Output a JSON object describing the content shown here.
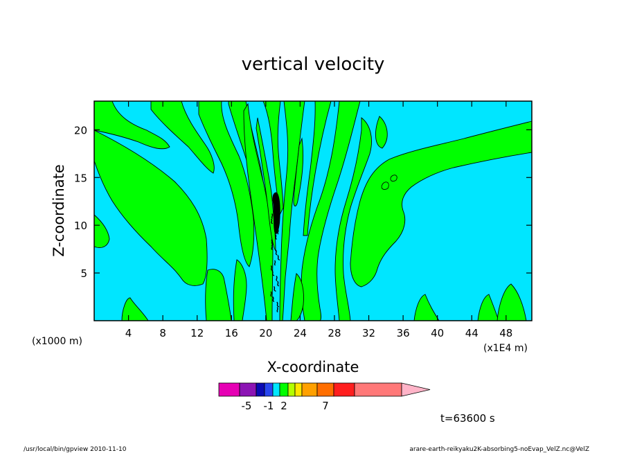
{
  "chart_data": {
    "type": "heatmap",
    "subtype": "contour",
    "title": "vertical velocity",
    "xlabel": "X-coordinate",
    "ylabel": "Z-coordinate",
    "x_scale_note": "(x1E4 m)",
    "y_scale_note": "(x1000 m)",
    "x_ticks": [
      4,
      8,
      12,
      16,
      20,
      24,
      28,
      32,
      36,
      40,
      44,
      48
    ],
    "y_ticks": [
      5,
      10,
      15,
      20
    ],
    "xlim": [
      0,
      51
    ],
    "ylim": [
      0,
      23
    ],
    "time_label": "t=63600 s",
    "colorbar": {
      "colors": [
        "#e600b4",
        "#8c14b4",
        "#0a0ab4",
        "#2846f0",
        "#00e6ff",
        "#00ff00",
        "#b4ff00",
        "#ffe600",
        "#ffa000",
        "#ff6e00",
        "#ff1e1e",
        "#ff7878",
        "#ffb4c8"
      ],
      "labels": [
        "-5",
        "-1",
        "2",
        "7"
      ],
      "label_bins": [
        1,
        3,
        5,
        9
      ]
    },
    "field_colors": {
      "background": "#00e6ff",
      "positive": "#00ff00",
      "strong": "#000000"
    }
  },
  "footer": {
    "left": "/usr/local/bin/gpview   2010-11-10",
    "right": "arare-earth-reikyaku2K-absorbing5-noEvap_VelZ.nc@VelZ"
  }
}
